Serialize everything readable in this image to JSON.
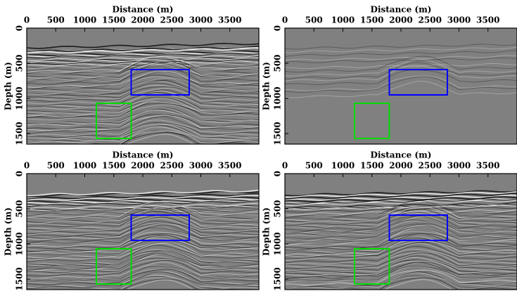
{
  "chart_data": [
    {
      "type": "image",
      "xlabel": "Distance (m)",
      "ylabel": "Depth (m)",
      "xlim": [
        0,
        4000
      ],
      "ylim": [
        0,
        1650
      ],
      "xticks": [
        0,
        500,
        1000,
        1500,
        2000,
        2500,
        3000,
        3500
      ],
      "yticks": [
        0,
        500,
        1000,
        1500
      ],
      "boxes": [
        {
          "color": "#0000ff",
          "x": [
            1800,
            2800
          ],
          "y": [
            590,
            950
          ]
        },
        {
          "color": "#00dd00",
          "x": [
            1200,
            1800
          ],
          "y": [
            1070,
            1570
          ]
        }
      ]
    },
    {
      "type": "image",
      "xlabel": "Distance (m)",
      "ylabel": "Depth (m)",
      "xlim": [
        0,
        4000
      ],
      "ylim": [
        0,
        1650
      ],
      "xticks": [
        0,
        500,
        1000,
        1500,
        2000,
        2500,
        3000,
        3500
      ],
      "yticks": [
        0,
        500,
        1000,
        1500
      ],
      "boxes": [
        {
          "color": "#0000ff",
          "x": [
            1800,
            2800
          ],
          "y": [
            590,
            950
          ]
        },
        {
          "color": "#00dd00",
          "x": [
            1200,
            1800
          ],
          "y": [
            1070,
            1570
          ]
        }
      ]
    },
    {
      "type": "image",
      "xlabel": "Distance (m)",
      "ylabel": "Depth (m)",
      "xlim": [
        0,
        4000
      ],
      "ylim": [
        0,
        1650
      ],
      "xticks": [
        0,
        500,
        1000,
        1500,
        2000,
        2500,
        3000,
        3500
      ],
      "yticks": [
        0,
        500,
        1000,
        1500
      ],
      "boxes": [
        {
          "color": "#0000ff",
          "x": [
            1800,
            2800
          ],
          "y": [
            590,
            950
          ]
        },
        {
          "color": "#00dd00",
          "x": [
            1200,
            1800
          ],
          "y": [
            1070,
            1570
          ]
        }
      ]
    },
    {
      "type": "image",
      "xlabel": "Distance (m)",
      "ylabel": "Depth (m)",
      "xlim": [
        0,
        4000
      ],
      "ylim": [
        0,
        1650
      ],
      "xticks": [
        0,
        500,
        1000,
        1500,
        2000,
        2500,
        3000,
        3500
      ],
      "yticks": [
        0,
        500,
        1000,
        1500
      ],
      "boxes": [
        {
          "color": "#0000ff",
          "x": [
            1800,
            2800
          ],
          "y": [
            590,
            950
          ]
        },
        {
          "color": "#00dd00",
          "x": [
            1200,
            1800
          ],
          "y": [
            1070,
            1570
          ]
        }
      ]
    }
  ]
}
